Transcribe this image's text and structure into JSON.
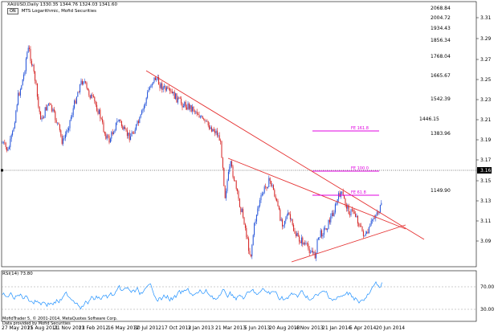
{
  "header": {
    "symbol_line": "XAUUSD,Daily  1330.35 1344.76 1324.03 1341.60",
    "mode_badge": "ON",
    "indicator_label": "MTS Logarithmic, Mofid Securities"
  },
  "price_axis": {
    "labels": [
      "2068.84",
      "2004.72",
      "1934.43",
      "1856.34",
      "1768.04",
      "1665.67",
      "1542.39",
      "1446.15",
      "1383.96",
      "1149.90"
    ],
    "scale_labels": [
      "3.31",
      "3.29",
      "3.27",
      "3.25",
      "3.23",
      "3.21",
      "3.19",
      "3.17",
      "3.15",
      "3.13",
      "3.11",
      "3.09"
    ],
    "current_value": "3.16"
  },
  "fib_labels": [
    "FE 161.8",
    "FE 100.0",
    "FE 61.8"
  ],
  "rsi": {
    "title": "RSI(14) 73.80",
    "levels": [
      "70.00",
      "30.00"
    ]
  },
  "date_axis": [
    "27 May 2011",
    "25 Aug 2011",
    "21 Nov 2011",
    "23 Feb 2012",
    "16 May 2012",
    "30 Jul 2012",
    "17 Oct 2012",
    "3 Jan 2013",
    "21 Mar 2013",
    "5 Jun 2013",
    "20 Aug 2013",
    "4 Nov 2013",
    "21 Jan 2014",
    "5 Apr 2014",
    "20 Jun 2014"
  ],
  "copyright": [
    "MofidTrader 5, © 2001-2014, MetaQuotes Software Corp.",
    "Data provided by Mofid Securities"
  ],
  "colors": {
    "candle_up": "#1f4fd8",
    "candle_down": "#d42020",
    "trendline": "#e53030",
    "fib": "#e000e0",
    "rsi_line": "#1e90ff"
  }
}
